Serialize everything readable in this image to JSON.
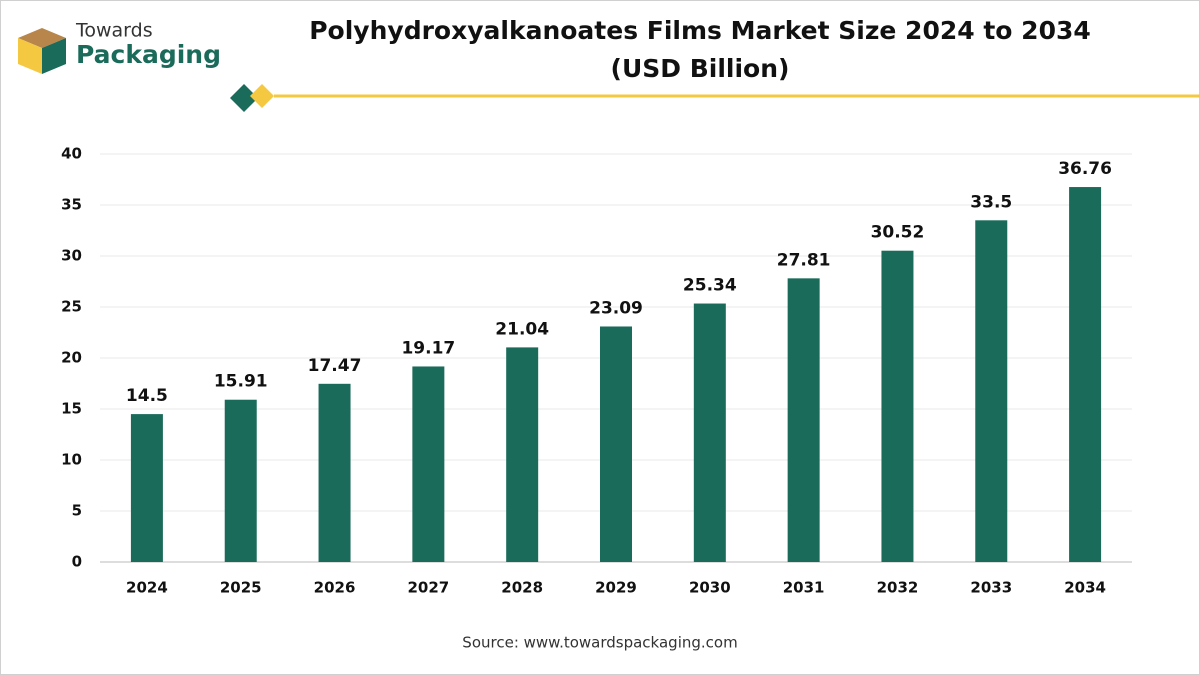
{
  "chart_data": {
    "type": "bar",
    "title": "Polyhydroxyalkanoates Films Market Size 2024 to 2034",
    "subtitle": "(USD Billion)",
    "logo": [
      "Towards",
      "Packaging"
    ],
    "source": "Source: www.towardspackaging.com",
    "categories": [
      "2024",
      "2025",
      "2026",
      "2027",
      "2028",
      "2029",
      "2030",
      "2031",
      "2032",
      "2033",
      "2034"
    ],
    "values": [
      14.5,
      15.91,
      17.47,
      19.17,
      21.04,
      23.09,
      25.34,
      27.81,
      30.52,
      33.5,
      36.76
    ],
    "color": "#1b6b5b",
    "ylim": [
      0,
      40
    ],
    "yticks": [
      0,
      5,
      10,
      15,
      20,
      25,
      30,
      35,
      40
    ],
    "grid": true
  }
}
